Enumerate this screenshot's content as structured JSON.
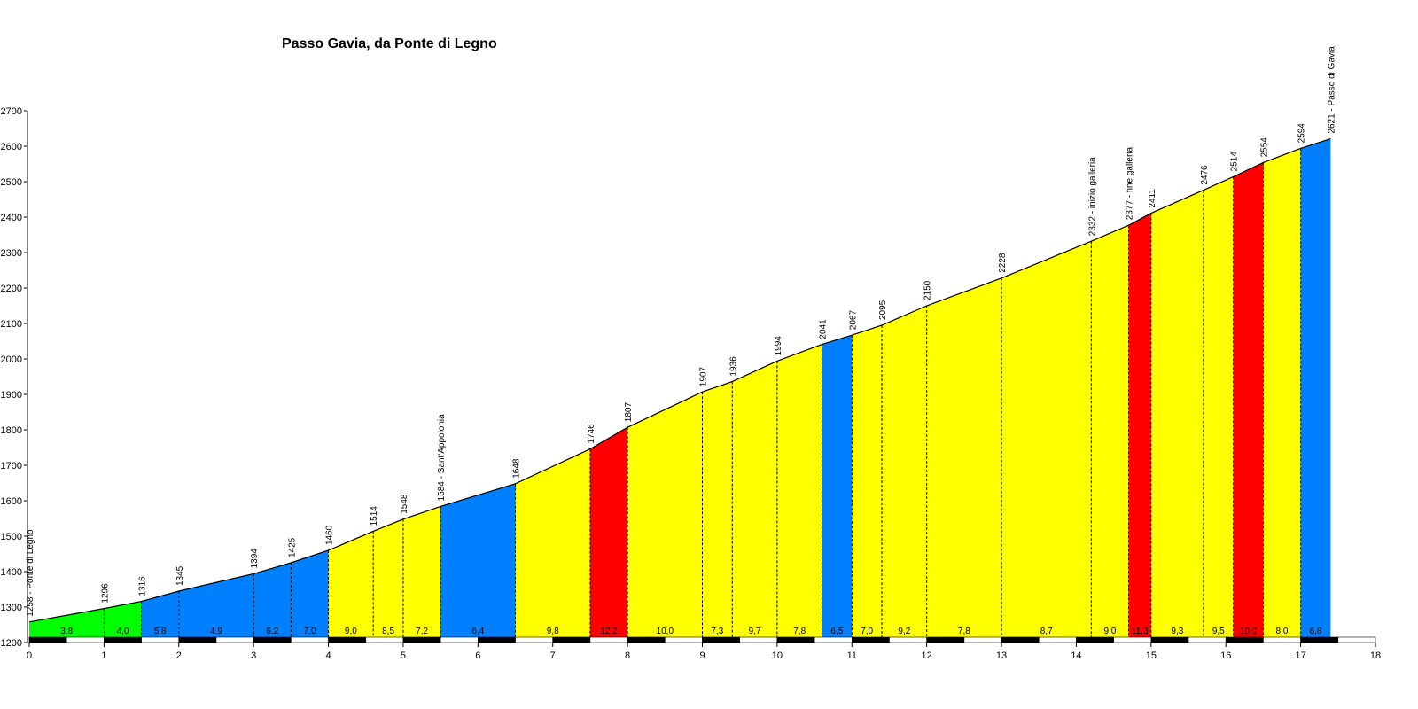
{
  "chart_data": {
    "type": "area",
    "title": "Passo Gavia, da Ponte di Legno",
    "xlabel": "",
    "ylabel": "",
    "xlim": [
      0,
      18
    ],
    "ylim": [
      1200,
      2700
    ],
    "x_ticks": [
      "0",
      "1",
      "2",
      "3",
      "4",
      "5",
      "6",
      "7",
      "8",
      "9",
      "10",
      "11",
      "12",
      "13",
      "14",
      "15",
      "16",
      "17",
      "18"
    ],
    "y_ticks": [
      "1200",
      "1300",
      "1400",
      "1500",
      "1600",
      "1700",
      "1800",
      "1900",
      "2000",
      "2100",
      "2200",
      "2300",
      "2400",
      "2500",
      "2600",
      "2700"
    ],
    "profile": [
      {
        "km": 0.0,
        "elevation": 1258,
        "label": "1258 - Ponte di Legno"
      },
      {
        "km": 1.0,
        "elevation": 1296,
        "label": "1296"
      },
      {
        "km": 1.5,
        "elevation": 1316,
        "label": "1316"
      },
      {
        "km": 2.0,
        "elevation": 1345,
        "label": "1345"
      },
      {
        "km": 3.0,
        "elevation": 1394,
        "label": "1394"
      },
      {
        "km": 3.5,
        "elevation": 1425,
        "label": "1425"
      },
      {
        "km": 4.0,
        "elevation": 1460,
        "label": "1460"
      },
      {
        "km": 4.6,
        "elevation": 1514,
        "label": "1514"
      },
      {
        "km": 5.0,
        "elevation": 1548,
        "label": "1548"
      },
      {
        "km": 5.5,
        "elevation": 1584,
        "label": "1584 - Sant'Appolonia"
      },
      {
        "km": 6.5,
        "elevation": 1648,
        "label": "1648"
      },
      {
        "km": 7.5,
        "elevation": 1746,
        "label": "1746"
      },
      {
        "km": 8.0,
        "elevation": 1807,
        "label": "1807"
      },
      {
        "km": 9.0,
        "elevation": 1907,
        "label": "1907"
      },
      {
        "km": 9.4,
        "elevation": 1936,
        "label": "1936"
      },
      {
        "km": 10.0,
        "elevation": 1994,
        "label": "1994"
      },
      {
        "km": 10.6,
        "elevation": 2041,
        "label": "2041"
      },
      {
        "km": 11.0,
        "elevation": 2067,
        "label": "2067"
      },
      {
        "km": 11.4,
        "elevation": 2095,
        "label": "2095"
      },
      {
        "km": 12.0,
        "elevation": 2150,
        "label": "2150"
      },
      {
        "km": 13.0,
        "elevation": 2228,
        "label": "2228"
      },
      {
        "km": 14.2,
        "elevation": 2332,
        "label": "2332 - inizio galleria"
      },
      {
        "km": 14.7,
        "elevation": 2377,
        "label": "2377 - fine galleria"
      },
      {
        "km": 15.0,
        "elevation": 2411,
        "label": "2411"
      },
      {
        "km": 15.7,
        "elevation": 2476,
        "label": "2476"
      },
      {
        "km": 16.1,
        "elevation": 2514,
        "label": "2514"
      },
      {
        "km": 16.5,
        "elevation": 2554,
        "label": "2554"
      },
      {
        "km": 17.0,
        "elevation": 2594,
        "label": "2594"
      },
      {
        "km": 17.4,
        "elevation": 2621,
        "label": "2621 - Passo di Gavia"
      }
    ],
    "segments": [
      {
        "gradient": "3,8",
        "color": "#00ff00"
      },
      {
        "gradient": "4,0",
        "color": "#00ff00"
      },
      {
        "gradient": "5,8",
        "color": "#0080ff"
      },
      {
        "gradient": "4,9",
        "color": "#0080ff"
      },
      {
        "gradient": "6,2",
        "color": "#0080ff"
      },
      {
        "gradient": "7,0",
        "color": "#0080ff"
      },
      {
        "gradient": "9,0",
        "color": "#ffff00"
      },
      {
        "gradient": "8,5",
        "color": "#ffff00"
      },
      {
        "gradient": "7,2",
        "color": "#ffff00"
      },
      {
        "gradient": "6,4",
        "color": "#0080ff"
      },
      {
        "gradient": "9,8",
        "color": "#ffff00"
      },
      {
        "gradient": "12,2",
        "color": "#ff0000"
      },
      {
        "gradient": "10,0",
        "color": "#ffff00"
      },
      {
        "gradient": "7,3",
        "color": "#ffff00"
      },
      {
        "gradient": "9,7",
        "color": "#ffff00"
      },
      {
        "gradient": "7,8",
        "color": "#ffff00"
      },
      {
        "gradient": "6,5",
        "color": "#0080ff"
      },
      {
        "gradient": "7,0",
        "color": "#ffff00"
      },
      {
        "gradient": "9,2",
        "color": "#ffff00"
      },
      {
        "gradient": "7,8",
        "color": "#ffff00"
      },
      {
        "gradient": "8,7",
        "color": "#ffff00"
      },
      {
        "gradient": "9,0",
        "color": "#ffff00"
      },
      {
        "gradient": "11,3",
        "color": "#ff0000"
      },
      {
        "gradient": "9,3",
        "color": "#ffff00"
      },
      {
        "gradient": "9,5",
        "color": "#ffff00"
      },
      {
        "gradient": "10,0",
        "color": "#ff0000"
      },
      {
        "gradient": "8,0",
        "color": "#ffff00"
      },
      {
        "gradient": "6,8",
        "color": "#0080ff"
      }
    ],
    "grid": false,
    "legend": "none"
  }
}
